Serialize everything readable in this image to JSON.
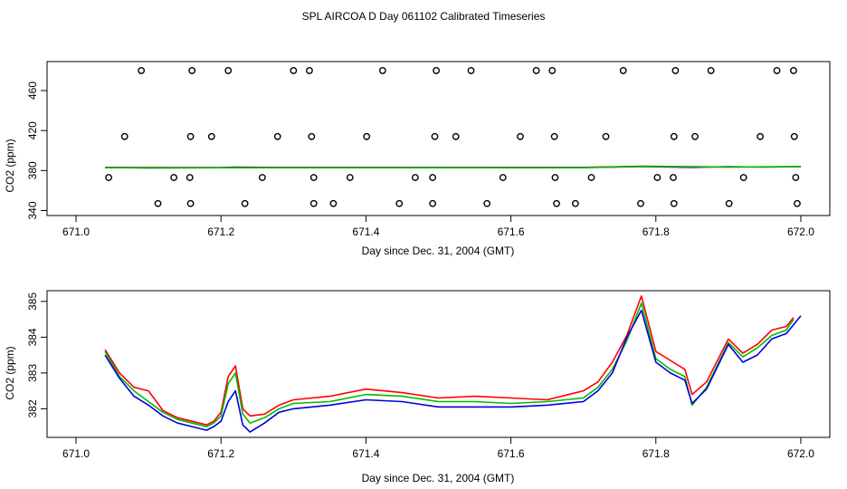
{
  "figure_title": "SPL AIRCOA D  Day 061102  Calibrated Timeseries",
  "chart_data": [
    {
      "type": "scatter",
      "title": "",
      "xlabel": "Day since Dec. 31, 2004 (GMT)",
      "ylabel": "CO2 (ppm)",
      "xlim": [
        670.96,
        672.04
      ],
      "ylim": [
        335,
        489
      ],
      "xticks": [
        671.0,
        671.2,
        671.4,
        671.6,
        671.8,
        672.0
      ],
      "xtick_labels": [
        "671.0",
        "671.2",
        "671.4",
        "671.6",
        "671.8",
        "672.0"
      ],
      "yticks": [
        340,
        380,
        420,
        460
      ],
      "ytick_labels": [
        "340",
        "380",
        "420",
        "460"
      ],
      "points": [
        {
          "x": 671.09,
          "y": 480
        },
        {
          "x": 671.16,
          "y": 480
        },
        {
          "x": 671.21,
          "y": 480
        },
        {
          "x": 671.3,
          "y": 480
        },
        {
          "x": 671.322,
          "y": 480
        },
        {
          "x": 671.423,
          "y": 480
        },
        {
          "x": 671.497,
          "y": 480
        },
        {
          "x": 671.545,
          "y": 480
        },
        {
          "x": 671.635,
          "y": 480
        },
        {
          "x": 671.657,
          "y": 480
        },
        {
          "x": 671.755,
          "y": 480
        },
        {
          "x": 671.827,
          "y": 480
        },
        {
          "x": 671.876,
          "y": 480
        },
        {
          "x": 671.967,
          "y": 480
        },
        {
          "x": 671.99,
          "y": 480
        },
        {
          "x": 671.067,
          "y": 414
        },
        {
          "x": 671.158,
          "y": 414
        },
        {
          "x": 671.187,
          "y": 414
        },
        {
          "x": 671.278,
          "y": 414
        },
        {
          "x": 671.325,
          "y": 414
        },
        {
          "x": 671.401,
          "y": 414
        },
        {
          "x": 671.495,
          "y": 414
        },
        {
          "x": 671.524,
          "y": 414
        },
        {
          "x": 671.613,
          "y": 414
        },
        {
          "x": 671.66,
          "y": 414
        },
        {
          "x": 671.731,
          "y": 414
        },
        {
          "x": 671.825,
          "y": 414
        },
        {
          "x": 671.854,
          "y": 414
        },
        {
          "x": 671.944,
          "y": 414
        },
        {
          "x": 671.991,
          "y": 414
        },
        {
          "x": 671.045,
          "y": 373
        },
        {
          "x": 671.135,
          "y": 373
        },
        {
          "x": 671.157,
          "y": 373
        },
        {
          "x": 671.257,
          "y": 373
        },
        {
          "x": 671.328,
          "y": 373
        },
        {
          "x": 671.378,
          "y": 373
        },
        {
          "x": 671.468,
          "y": 373
        },
        {
          "x": 671.492,
          "y": 373
        },
        {
          "x": 671.589,
          "y": 373
        },
        {
          "x": 671.661,
          "y": 373
        },
        {
          "x": 671.711,
          "y": 373
        },
        {
          "x": 671.802,
          "y": 373
        },
        {
          "x": 671.824,
          "y": 373
        },
        {
          "x": 671.921,
          "y": 373
        },
        {
          "x": 671.993,
          "y": 373
        },
        {
          "x": 671.113,
          "y": 347
        },
        {
          "x": 671.158,
          "y": 347
        },
        {
          "x": 671.233,
          "y": 347
        },
        {
          "x": 671.328,
          "y": 347
        },
        {
          "x": 671.355,
          "y": 347
        },
        {
          "x": 671.446,
          "y": 347
        },
        {
          "x": 671.492,
          "y": 347
        },
        {
          "x": 671.567,
          "y": 347
        },
        {
          "x": 671.663,
          "y": 347
        },
        {
          "x": 671.689,
          "y": 347
        },
        {
          "x": 671.779,
          "y": 347
        },
        {
          "x": 671.825,
          "y": 347
        },
        {
          "x": 671.901,
          "y": 347
        },
        {
          "x": 671.995,
          "y": 347
        }
      ],
      "series": [
        {
          "name": "blue",
          "color": "#0000ff",
          "x": [
            671.04,
            671.1,
            671.2,
            671.22,
            671.3,
            671.4,
            671.5,
            671.6,
            671.7,
            671.78,
            671.85,
            671.9,
            671.95,
            672.0
          ],
          "y": [
            383.0,
            382.6,
            382.8,
            383.5,
            383.0,
            382.9,
            382.9,
            382.8,
            382.9,
            384.0,
            383.2,
            383.9,
            383.5,
            383.8
          ]
        },
        {
          "name": "red",
          "color": "#ff0000",
          "x": [
            671.04,
            671.2,
            671.3,
            671.5,
            671.7,
            671.78,
            671.9,
            672.0
          ],
          "y": [
            383.1,
            382.9,
            383.1,
            383.0,
            383.2,
            384.3,
            383.6,
            383.9
          ]
        },
        {
          "name": "green",
          "color": "#00bb00",
          "x": [
            671.04,
            671.2,
            671.3,
            671.5,
            671.7,
            671.78,
            671.9,
            672.0
          ],
          "y": [
            383.0,
            382.8,
            383.0,
            382.9,
            383.1,
            384.1,
            383.6,
            383.8
          ]
        }
      ]
    },
    {
      "type": "line",
      "title": "",
      "xlabel": "Day since Dec. 31, 2004 (GMT)",
      "ylabel": "CO2 (ppm)",
      "xlim": [
        670.96,
        672.04
      ],
      "ylim": [
        381.2,
        385.3
      ],
      "xticks": [
        671.0,
        671.2,
        671.4,
        671.6,
        671.8,
        672.0
      ],
      "xtick_labels": [
        "671.0",
        "671.2",
        "671.4",
        "671.6",
        "671.8",
        "672.0"
      ],
      "yticks": [
        382,
        383,
        384,
        385
      ],
      "ytick_labels": [
        "382",
        "383",
        "384",
        "385"
      ],
      "series": [
        {
          "name": "red",
          "color": "#ff0000",
          "x": [
            671.04,
            671.06,
            671.08,
            671.1,
            671.12,
            671.14,
            671.16,
            671.18,
            671.19,
            671.2,
            671.21,
            671.22,
            671.23,
            671.24,
            671.26,
            671.28,
            671.3,
            671.35,
            671.4,
            671.45,
            671.5,
            671.55,
            671.6,
            671.65,
            671.7,
            671.72,
            671.74,
            671.76,
            671.78,
            671.8,
            671.82,
            671.84,
            671.85,
            671.87,
            671.9,
            671.92,
            671.94,
            671.96,
            671.98,
            671.99
          ],
          "y": [
            383.65,
            383.0,
            382.6,
            382.5,
            381.95,
            381.75,
            381.65,
            381.55,
            381.65,
            381.9,
            382.9,
            383.2,
            382.0,
            381.8,
            381.85,
            382.1,
            382.25,
            382.35,
            382.55,
            382.45,
            382.3,
            382.35,
            382.3,
            382.25,
            382.5,
            382.75,
            383.3,
            384.05,
            385.15,
            383.6,
            383.35,
            383.1,
            382.4,
            382.75,
            383.95,
            383.55,
            383.8,
            384.2,
            384.3,
            384.55
          ]
        },
        {
          "name": "green",
          "color": "#00bb00",
          "x": [
            671.04,
            671.06,
            671.08,
            671.1,
            671.12,
            671.14,
            671.16,
            671.18,
            671.19,
            671.2,
            671.21,
            671.22,
            671.23,
            671.24,
            671.26,
            671.28,
            671.3,
            671.35,
            671.4,
            671.45,
            671.5,
            671.55,
            671.6,
            671.65,
            671.7,
            671.72,
            671.74,
            671.76,
            671.78,
            671.8,
            671.82,
            671.84,
            671.85,
            671.87,
            671.9,
            671.92,
            671.94,
            671.96,
            671.98,
            671.99
          ],
          "y": [
            383.6,
            382.9,
            382.5,
            382.2,
            381.9,
            381.7,
            381.6,
            381.5,
            381.6,
            381.8,
            382.7,
            383.0,
            381.85,
            381.6,
            381.75,
            382.0,
            382.15,
            382.2,
            382.4,
            382.35,
            382.2,
            382.2,
            382.15,
            382.2,
            382.3,
            382.6,
            383.1,
            383.9,
            384.95,
            383.4,
            383.1,
            382.9,
            382.1,
            382.6,
            383.85,
            383.45,
            383.7,
            384.05,
            384.2,
            384.5
          ]
        },
        {
          "name": "blue",
          "color": "#0000dd",
          "x": [
            671.04,
            671.06,
            671.08,
            671.1,
            671.12,
            671.14,
            671.16,
            671.18,
            671.19,
            671.2,
            671.21,
            671.22,
            671.23,
            671.24,
            671.26,
            671.28,
            671.3,
            671.35,
            671.4,
            671.45,
            671.5,
            671.55,
            671.6,
            671.65,
            671.7,
            671.72,
            671.74,
            671.76,
            671.78,
            671.8,
            671.82,
            671.84,
            671.85,
            671.87,
            671.9,
            671.92,
            671.94,
            671.96,
            671.98,
            672.0
          ],
          "y": [
            383.5,
            382.85,
            382.35,
            382.1,
            381.8,
            381.6,
            381.5,
            381.4,
            381.5,
            381.65,
            382.2,
            382.5,
            381.55,
            381.35,
            381.6,
            381.9,
            382.0,
            382.1,
            382.25,
            382.2,
            382.05,
            382.05,
            382.05,
            382.1,
            382.2,
            382.5,
            383.0,
            384.0,
            384.75,
            383.3,
            383.0,
            382.8,
            382.15,
            382.55,
            383.8,
            383.3,
            383.5,
            383.95,
            384.1,
            384.6
          ]
        }
      ]
    }
  ]
}
